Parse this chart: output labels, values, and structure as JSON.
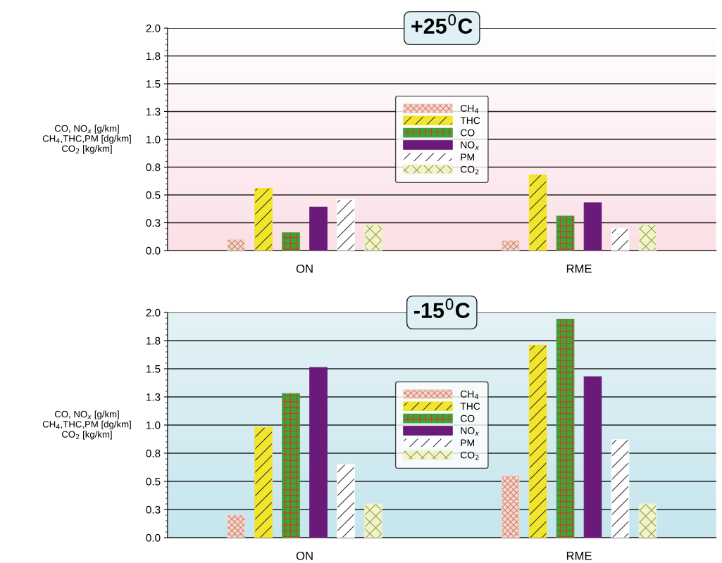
{
  "chart_data": [
    {
      "type": "bar",
      "title": "+25$^{0}$C",
      "ylabel": "CO, NO$_{x}$ [g/km]\nCH$_{4}$,THC,PM [dg/km]\nCO$_{2}$ [kg/km]",
      "categories": [
        "ON",
        "RME"
      ],
      "ylim": [
        0,
        2.0
      ],
      "yticks": [
        {
          "value": 0,
          "label": "0.0"
        },
        {
          "value": 0.25,
          "label": "0.3"
        },
        0.5,
        {
          "value": 0.75,
          "label": "0.8"
        },
        {
          "value": 1,
          "label": "1.0"
        },
        {
          "value": 1.25,
          "label": "1.3"
        },
        1.5,
        {
          "value": 1.75,
          "label": "1.8"
        },
        {
          "value": 2,
          "label": "2.0"
        }
      ],
      "grid": "y",
      "legend": "center",
      "series": [
        {
          "name": "CH$_{4}$",
          "color": "#f4d8cc",
          "values": [
            0.1,
            0.09
          ]
        },
        {
          "name": "THC",
          "color": "#f2e52a",
          "values": [
            0.56,
            0.68
          ]
        },
        {
          "name": "CO",
          "color": "#3aa63a",
          "values": [
            0.16,
            0.31
          ]
        },
        {
          "name": "NO$_{x}$",
          "color": "#6a1a78",
          "values": [
            0.39,
            0.43
          ]
        },
        {
          "name": "PM",
          "color": "#ffffff",
          "values": [
            0.46,
            0.2
          ]
        },
        {
          "name": "CO$_{2}$",
          "color": "#f2f2cc",
          "values": [
            0.23,
            0.23
          ]
        }
      ]
    },
    {
      "type": "bar",
      "title": "-15$^{0}$C",
      "ylabel": "CO, NO$_{x}$ [g/km]\nCH$_{4}$,THC,PM [dg/km]\nCO$_{2}$ [kg/km]",
      "categories": [
        "ON",
        "RME"
      ],
      "ylim": [
        0,
        2.0
      ],
      "yticks": [
        {
          "value": 0,
          "label": "0.0"
        },
        {
          "value": 0.25,
          "label": "0.3"
        },
        {
          "value": 0.5,
          "label": "0.5"
        },
        {
          "value": 0.75,
          "label": "0.8"
        },
        {
          "value": 1,
          "label": "1.0"
        },
        {
          "value": 1.25,
          "label": "1.3"
        },
        {
          "value": 1.5,
          "label": "1.5"
        },
        {
          "value": 1.75,
          "label": "1.8"
        },
        {
          "value": 2,
          "label": "2.0"
        }
      ],
      "grid": "y",
      "legend": "center",
      "series": [
        {
          "name": "CH$_{4}$",
          "color": "#f4d8cc",
          "values": [
            0.2,
            0.55
          ]
        },
        {
          "name": "THC",
          "color": "#f2e52a",
          "values": [
            0.98,
            1.71
          ]
        },
        {
          "name": "CO",
          "color": "#3aa63a",
          "values": [
            1.28,
            1.94
          ]
        },
        {
          "name": "NO$_{x}$",
          "color": "#6a1a78",
          "values": [
            1.51,
            1.43
          ]
        },
        {
          "name": "PM",
          "color": "#ffffff",
          "values": [
            0.65,
            0.87
          ]
        },
        {
          "name": "CO$_{2}$",
          "color": "#f2f2cc",
          "values": [
            0.3,
            0.3
          ]
        }
      ]
    }
  ]
}
